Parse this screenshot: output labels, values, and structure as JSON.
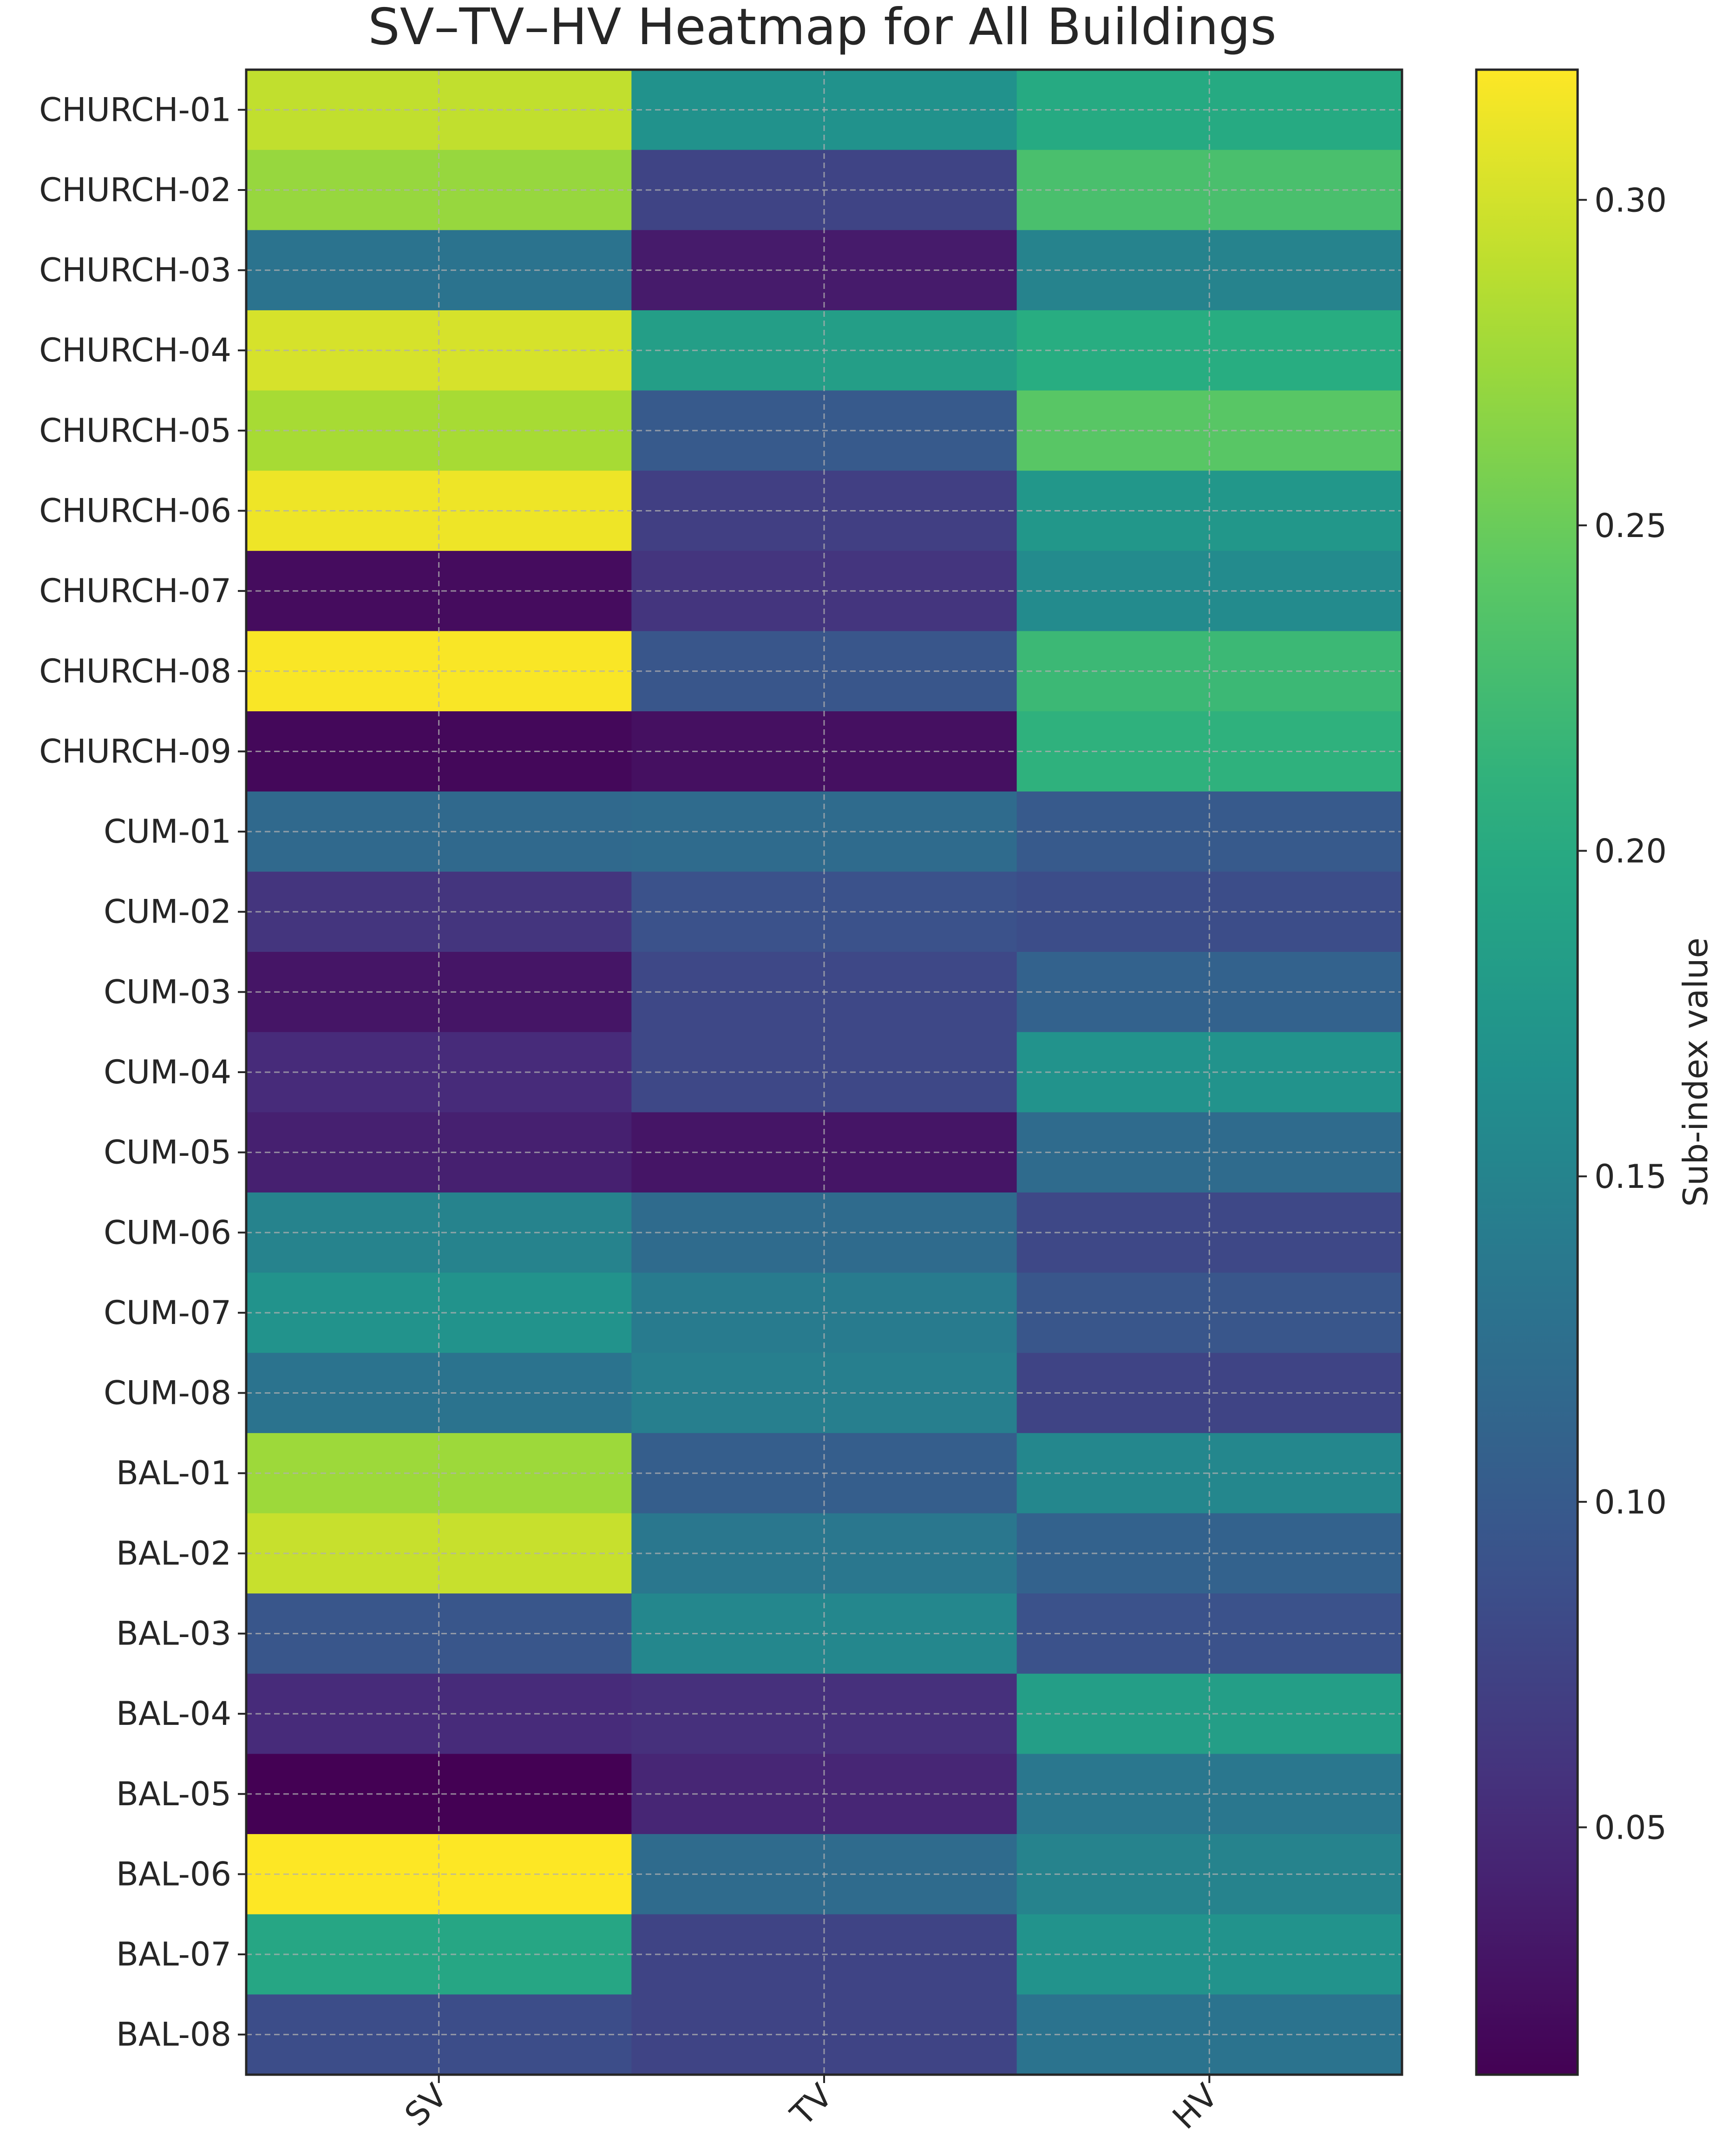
{
  "chart_data": {
    "type": "heatmap",
    "title": "SV–TV–HV Heatmap for All Buildings",
    "x_categories": [
      "SV",
      "TV",
      "HV"
    ],
    "y_categories": [
      "CHURCH-01",
      "CHURCH-02",
      "CHURCH-03",
      "CHURCH-04",
      "CHURCH-05",
      "CHURCH-06",
      "CHURCH-07",
      "CHURCH-08",
      "CHURCH-09",
      "CUM-01",
      "CUM-02",
      "CUM-03",
      "CUM-04",
      "CUM-05",
      "CUM-06",
      "CUM-07",
      "CUM-08",
      "BAL-01",
      "BAL-02",
      "BAL-03",
      "BAL-04",
      "BAL-05",
      "BAL-06",
      "BAL-07",
      "BAL-08"
    ],
    "values": [
      [
        0.292,
        0.168,
        0.2
      ],
      [
        0.272,
        0.075,
        0.23
      ],
      [
        0.13,
        0.035,
        0.15
      ],
      [
        0.302,
        0.185,
        0.205
      ],
      [
        0.28,
        0.1,
        0.24
      ],
      [
        0.313,
        0.07,
        0.175
      ],
      [
        0.022,
        0.06,
        0.16
      ],
      [
        0.318,
        0.095,
        0.22
      ],
      [
        0.018,
        0.025,
        0.21
      ],
      [
        0.118,
        0.12,
        0.1
      ],
      [
        0.06,
        0.09,
        0.085
      ],
      [
        0.03,
        0.08,
        0.11
      ],
      [
        0.05,
        0.08,
        0.17
      ],
      [
        0.04,
        0.03,
        0.12
      ],
      [
        0.15,
        0.12,
        0.08
      ],
      [
        0.17,
        0.14,
        0.095
      ],
      [
        0.13,
        0.145,
        0.075
      ],
      [
        0.275,
        0.105,
        0.155
      ],
      [
        0.295,
        0.135,
        0.11
      ],
      [
        0.095,
        0.155,
        0.09
      ],
      [
        0.05,
        0.055,
        0.185
      ],
      [
        0.012,
        0.045,
        0.135
      ],
      [
        0.32,
        0.12,
        0.15
      ],
      [
        0.195,
        0.075,
        0.17
      ],
      [
        0.085,
        0.075,
        0.13
      ]
    ],
    "zlim": [
      0.012,
      0.32
    ],
    "colormap": "viridis",
    "colorbar": {
      "label": "Sub-index value",
      "ticks": [
        0.05,
        0.1,
        0.15,
        0.2,
        0.25,
        0.3
      ],
      "tick_labels": [
        "0.05",
        "0.10",
        "0.15",
        "0.20",
        "0.25",
        "0.30"
      ]
    },
    "grid": true,
    "xlabel": "",
    "ylabel": ""
  }
}
